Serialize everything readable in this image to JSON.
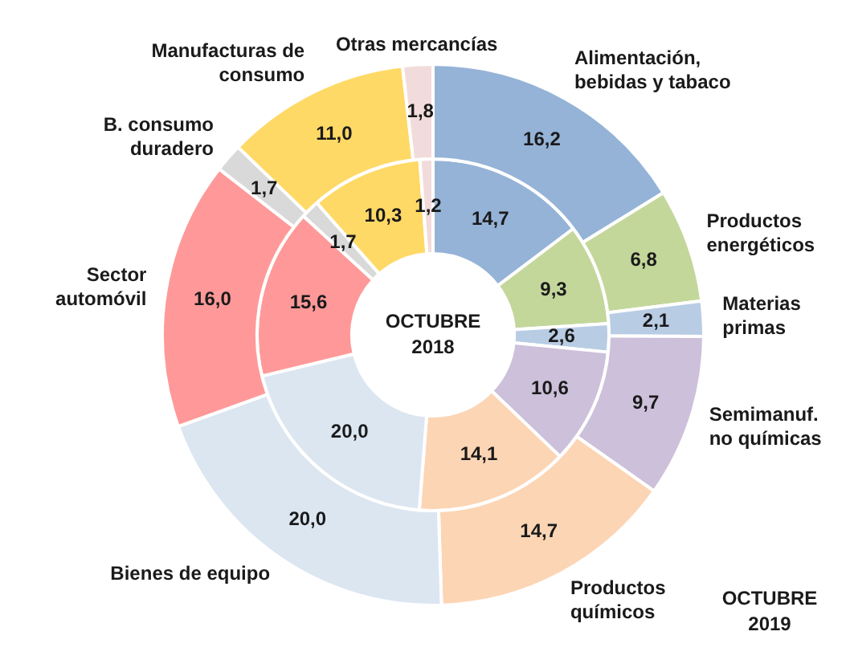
{
  "chart_data": {
    "type": "donut",
    "categories": [
      "Alimentación, bebidas y tabaco",
      "Productos energéticos",
      "Materias primas",
      "Semimanuf. no químicas",
      "Productos químicos",
      "Bienes de equipo",
      "Sector automóvil",
      "B. consumo duradero",
      "Manufacturas de consumo",
      "Otras mercancías"
    ],
    "colors": [
      "#95b3d7",
      "#c4d79b",
      "#b8cce4",
      "#ccc0da",
      "#fcd5b4",
      "#dce6f1",
      "#ff9999",
      "#d9d9d9",
      "#ffd966",
      "#f2dcdb"
    ],
    "series": [
      {
        "name": "OCTUBRE 2019",
        "values": [
          16.2,
          6.8,
          2.1,
          9.7,
          14.7,
          20.0,
          16.0,
          1.7,
          11.0,
          1.8
        ],
        "value_labels": [
          "16,2",
          "6,8",
          "2,1",
          "9,7",
          "14,7",
          "20,0",
          "16,0",
          "1,7",
          "11,0",
          "1,8"
        ]
      },
      {
        "name": "OCTUBRE 2018",
        "values": [
          14.7,
          9.3,
          2.6,
          10.6,
          14.1,
          20.0,
          15.6,
          1.7,
          10.3,
          1.2
        ],
        "value_labels": [
          "14,7",
          "9,3",
          "2,6",
          "10,6",
          "14,1",
          "20,0",
          "15,6",
          "1,7",
          "10,3",
          "1,2"
        ]
      }
    ]
  }
}
